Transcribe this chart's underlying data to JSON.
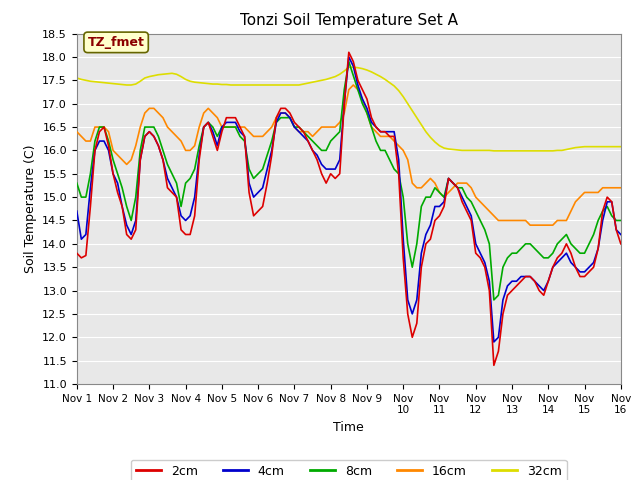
{
  "title": "Tonzi Soil Temperature Set A",
  "xlabel": "Time",
  "ylabel": "Soil Temperature (C)",
  "ylim": [
    11.0,
    18.5
  ],
  "yticks": [
    11.0,
    11.5,
    12.0,
    12.5,
    13.0,
    13.5,
    14.0,
    14.5,
    15.0,
    15.5,
    16.0,
    16.5,
    17.0,
    17.5,
    18.0,
    18.5
  ],
  "x_labels": [
    "Nov 1",
    "Nov 2",
    "Nov 3",
    "Nov 4",
    "Nov 5",
    "Nov 6",
    "Nov 7",
    "Nov 8",
    "Nov 9",
    "Nov 9",
    "Nov 10",
    "Nov 11",
    "Nov 12",
    "Nov 13",
    "Nov 14",
    "Nov 15",
    "Nov 16"
  ],
  "annotation_text": "TZ_fmet",
  "annotation_color": "#8B0000",
  "annotation_bg": "#FFFFCC",
  "bg_color": "#E8E8E8",
  "series": {
    "2cm": {
      "color": "#DD0000",
      "data_x": [
        0.0,
        0.125,
        0.25,
        0.375,
        0.5,
        0.625,
        0.75,
        0.875,
        1.0,
        1.125,
        1.25,
        1.375,
        1.5,
        1.625,
        1.75,
        1.875,
        2.0,
        2.125,
        2.25,
        2.375,
        2.5,
        2.625,
        2.75,
        2.875,
        3.0,
        3.125,
        3.25,
        3.375,
        3.5,
        3.625,
        3.75,
        3.875,
        4.0,
        4.125,
        4.25,
        4.375,
        4.5,
        4.625,
        4.75,
        4.875,
        5.0,
        5.125,
        5.25,
        5.375,
        5.5,
        5.625,
        5.75,
        5.875,
        6.0,
        6.125,
        6.25,
        6.375,
        6.5,
        6.625,
        6.75,
        6.875,
        7.0,
        7.125,
        7.25,
        7.375,
        7.5,
        7.625,
        7.75,
        7.875,
        8.0,
        8.125,
        8.25,
        8.375,
        8.5,
        8.625,
        8.75,
        8.875,
        9.0,
        9.125,
        9.25,
        9.375,
        9.5,
        9.625,
        9.75,
        9.875,
        10.0,
        10.125,
        10.25,
        10.375,
        10.5,
        10.625,
        10.75,
        10.875,
        11.0,
        11.125,
        11.25,
        11.375,
        11.5,
        11.625,
        11.75,
        11.875,
        12.0,
        12.125,
        12.25,
        12.375,
        12.5,
        12.625,
        12.75,
        12.875,
        13.0,
        13.125,
        13.25,
        13.375,
        13.5,
        13.625,
        13.75,
        13.875,
        14.0,
        14.125,
        14.25,
        14.375,
        14.5,
        14.625,
        14.75,
        14.875,
        15.0
      ],
      "data_y": [
        13.8,
        13.7,
        13.75,
        14.8,
        16.0,
        16.4,
        16.5,
        16.1,
        15.5,
        15.1,
        14.8,
        14.2,
        14.1,
        14.3,
        15.8,
        16.3,
        16.4,
        16.3,
        16.1,
        15.8,
        15.2,
        15.1,
        15.0,
        14.3,
        14.2,
        14.2,
        14.6,
        15.8,
        16.5,
        16.6,
        16.3,
        16.0,
        16.4,
        16.7,
        16.7,
        16.7,
        16.5,
        16.3,
        15.1,
        14.6,
        14.7,
        14.8,
        15.3,
        15.9,
        16.7,
        16.9,
        16.9,
        16.8,
        16.6,
        16.5,
        16.4,
        16.2,
        16.0,
        15.8,
        15.5,
        15.3,
        15.5,
        15.4,
        15.5,
        17.0,
        18.1,
        17.9,
        17.5,
        17.3,
        17.1,
        16.7,
        16.5,
        16.4,
        16.4,
        16.3,
        16.3,
        15.5,
        13.7,
        12.5,
        12.0,
        12.3,
        13.5,
        14.0,
        14.1,
        14.5,
        14.6,
        14.8,
        15.4,
        15.3,
        15.2,
        14.9,
        14.7,
        14.5,
        13.8,
        13.7,
        13.5,
        13.0,
        11.4,
        11.7,
        12.5,
        12.9,
        13.0,
        13.1,
        13.2,
        13.3,
        13.3,
        13.2,
        13.0,
        12.9,
        13.2,
        13.5,
        13.7,
        13.8,
        14.0,
        13.8,
        13.5,
        13.3,
        13.3,
        13.4,
        13.5,
        13.9,
        14.7,
        15.0,
        14.9,
        14.3,
        14.0
      ]
    },
    "4cm": {
      "color": "#0000CC",
      "data_x": [
        0.0,
        0.125,
        0.25,
        0.375,
        0.5,
        0.625,
        0.75,
        0.875,
        1.0,
        1.125,
        1.25,
        1.375,
        1.5,
        1.625,
        1.75,
        1.875,
        2.0,
        2.125,
        2.25,
        2.375,
        2.5,
        2.625,
        2.75,
        2.875,
        3.0,
        3.125,
        3.25,
        3.375,
        3.5,
        3.625,
        3.75,
        3.875,
        4.0,
        4.125,
        4.25,
        4.375,
        4.5,
        4.625,
        4.75,
        4.875,
        5.0,
        5.125,
        5.25,
        5.375,
        5.5,
        5.625,
        5.75,
        5.875,
        6.0,
        6.125,
        6.25,
        6.375,
        6.5,
        6.625,
        6.75,
        6.875,
        7.0,
        7.125,
        7.25,
        7.375,
        7.5,
        7.625,
        7.75,
        7.875,
        8.0,
        8.125,
        8.25,
        8.375,
        8.5,
        8.625,
        8.75,
        8.875,
        9.0,
        9.125,
        9.25,
        9.375,
        9.5,
        9.625,
        9.75,
        9.875,
        10.0,
        10.125,
        10.25,
        10.375,
        10.5,
        10.625,
        10.75,
        10.875,
        11.0,
        11.125,
        11.25,
        11.375,
        11.5,
        11.625,
        11.75,
        11.875,
        12.0,
        12.125,
        12.25,
        12.375,
        12.5,
        12.625,
        12.75,
        12.875,
        13.0,
        13.125,
        13.25,
        13.375,
        13.5,
        13.625,
        13.75,
        13.875,
        14.0,
        14.125,
        14.25,
        14.375,
        14.5,
        14.625,
        14.75,
        14.875,
        15.0
      ],
      "data_y": [
        14.7,
        14.1,
        14.2,
        15.2,
        16.0,
        16.2,
        16.2,
        16.0,
        15.5,
        15.3,
        14.8,
        14.4,
        14.2,
        14.5,
        15.8,
        16.3,
        16.4,
        16.3,
        16.1,
        15.8,
        15.4,
        15.2,
        15.0,
        14.6,
        14.5,
        14.6,
        15.0,
        15.9,
        16.5,
        16.6,
        16.4,
        16.1,
        16.5,
        16.6,
        16.6,
        16.6,
        16.4,
        16.3,
        15.3,
        15.0,
        15.1,
        15.2,
        15.6,
        16.0,
        16.6,
        16.8,
        16.8,
        16.7,
        16.5,
        16.4,
        16.3,
        16.2,
        16.0,
        15.9,
        15.7,
        15.6,
        15.6,
        15.6,
        15.8,
        17.0,
        18.0,
        17.8,
        17.4,
        17.1,
        16.9,
        16.6,
        16.5,
        16.4,
        16.4,
        16.4,
        16.4,
        15.8,
        14.1,
        12.8,
        12.5,
        12.8,
        13.8,
        14.2,
        14.4,
        14.8,
        14.8,
        14.9,
        15.4,
        15.3,
        15.2,
        15.0,
        14.8,
        14.6,
        14.0,
        13.8,
        13.6,
        13.2,
        11.9,
        12.0,
        12.8,
        13.1,
        13.2,
        13.2,
        13.3,
        13.3,
        13.3,
        13.2,
        13.1,
        13.0,
        13.2,
        13.5,
        13.6,
        13.7,
        13.8,
        13.6,
        13.5,
        13.4,
        13.4,
        13.5,
        13.6,
        13.9,
        14.5,
        14.9,
        14.9,
        14.3,
        14.2
      ]
    },
    "8cm": {
      "color": "#00AA00",
      "data_x": [
        0.0,
        0.125,
        0.25,
        0.375,
        0.5,
        0.625,
        0.75,
        0.875,
        1.0,
        1.125,
        1.25,
        1.375,
        1.5,
        1.625,
        1.75,
        1.875,
        2.0,
        2.125,
        2.25,
        2.375,
        2.5,
        2.625,
        2.75,
        2.875,
        3.0,
        3.125,
        3.25,
        3.375,
        3.5,
        3.625,
        3.75,
        3.875,
        4.0,
        4.125,
        4.25,
        4.375,
        4.5,
        4.625,
        4.75,
        4.875,
        5.0,
        5.125,
        5.25,
        5.375,
        5.5,
        5.625,
        5.75,
        5.875,
        6.0,
        6.125,
        6.25,
        6.375,
        6.5,
        6.625,
        6.75,
        6.875,
        7.0,
        7.125,
        7.25,
        7.375,
        7.5,
        7.625,
        7.75,
        7.875,
        8.0,
        8.125,
        8.25,
        8.375,
        8.5,
        8.625,
        8.75,
        8.875,
        9.0,
        9.125,
        9.25,
        9.375,
        9.5,
        9.625,
        9.75,
        9.875,
        10.0,
        10.125,
        10.25,
        10.375,
        10.5,
        10.625,
        10.75,
        10.875,
        11.0,
        11.125,
        11.25,
        11.375,
        11.5,
        11.625,
        11.75,
        11.875,
        12.0,
        12.125,
        12.25,
        12.375,
        12.5,
        12.625,
        12.75,
        12.875,
        13.0,
        13.125,
        13.25,
        13.375,
        13.5,
        13.625,
        13.75,
        13.875,
        14.0,
        14.125,
        14.25,
        14.375,
        14.5,
        14.625,
        14.75,
        14.875,
        15.0
      ],
      "data_y": [
        15.3,
        15.0,
        15.0,
        15.5,
        16.2,
        16.5,
        16.5,
        16.2,
        15.8,
        15.5,
        15.2,
        14.8,
        14.5,
        15.0,
        16.0,
        16.5,
        16.5,
        16.5,
        16.3,
        16.0,
        15.7,
        15.5,
        15.3,
        14.8,
        15.3,
        15.4,
        15.6,
        16.1,
        16.5,
        16.6,
        16.5,
        16.3,
        16.5,
        16.5,
        16.5,
        16.5,
        16.3,
        16.2,
        15.6,
        15.4,
        15.5,
        15.6,
        15.9,
        16.2,
        16.6,
        16.7,
        16.7,
        16.7,
        16.5,
        16.5,
        16.4,
        16.3,
        16.2,
        16.1,
        16.0,
        16.0,
        16.2,
        16.3,
        16.4,
        17.3,
        17.9,
        17.6,
        17.3,
        17.0,
        16.8,
        16.5,
        16.2,
        16.0,
        16.0,
        15.8,
        15.6,
        15.5,
        15.0,
        14.0,
        13.5,
        14.0,
        14.8,
        15.0,
        15.0,
        15.2,
        15.1,
        15.0,
        15.4,
        15.3,
        15.2,
        15.2,
        15.0,
        14.9,
        14.7,
        14.5,
        14.3,
        14.0,
        12.8,
        12.9,
        13.5,
        13.7,
        13.8,
        13.8,
        13.9,
        14.0,
        14.0,
        13.9,
        13.8,
        13.7,
        13.7,
        13.8,
        14.0,
        14.1,
        14.2,
        14.0,
        13.9,
        13.8,
        13.8,
        14.0,
        14.2,
        14.5,
        14.7,
        14.8,
        14.6,
        14.5,
        14.5
      ]
    },
    "16cm": {
      "color": "#FF8800",
      "data_x": [
        0.0,
        0.125,
        0.25,
        0.375,
        0.5,
        0.625,
        0.75,
        0.875,
        1.0,
        1.125,
        1.25,
        1.375,
        1.5,
        1.625,
        1.75,
        1.875,
        2.0,
        2.125,
        2.25,
        2.375,
        2.5,
        2.625,
        2.75,
        2.875,
        3.0,
        3.125,
        3.25,
        3.375,
        3.5,
        3.625,
        3.75,
        3.875,
        4.0,
        4.125,
        4.25,
        4.375,
        4.5,
        4.625,
        4.75,
        4.875,
        5.0,
        5.125,
        5.25,
        5.375,
        5.5,
        5.625,
        5.75,
        5.875,
        6.0,
        6.125,
        6.25,
        6.375,
        6.5,
        6.625,
        6.75,
        6.875,
        7.0,
        7.125,
        7.25,
        7.375,
        7.5,
        7.625,
        7.75,
        7.875,
        8.0,
        8.125,
        8.25,
        8.375,
        8.5,
        8.625,
        8.75,
        8.875,
        9.0,
        9.125,
        9.25,
        9.375,
        9.5,
        9.625,
        9.75,
        9.875,
        10.0,
        10.125,
        10.25,
        10.375,
        10.5,
        10.625,
        10.75,
        10.875,
        11.0,
        11.125,
        11.25,
        11.375,
        11.5,
        11.625,
        11.75,
        11.875,
        12.0,
        12.125,
        12.25,
        12.375,
        12.5,
        12.625,
        12.75,
        12.875,
        13.0,
        13.125,
        13.25,
        13.375,
        13.5,
        13.625,
        13.75,
        13.875,
        14.0,
        14.125,
        14.25,
        14.375,
        14.5,
        14.625,
        14.75,
        14.875,
        15.0
      ],
      "data_y": [
        16.4,
        16.3,
        16.2,
        16.2,
        16.5,
        16.5,
        16.5,
        16.4,
        16.0,
        15.9,
        15.8,
        15.7,
        15.8,
        16.1,
        16.5,
        16.8,
        16.9,
        16.9,
        16.8,
        16.7,
        16.5,
        16.4,
        16.3,
        16.2,
        16.0,
        16.0,
        16.1,
        16.5,
        16.8,
        16.9,
        16.8,
        16.7,
        16.5,
        16.5,
        16.5,
        16.5,
        16.5,
        16.5,
        16.4,
        16.3,
        16.3,
        16.3,
        16.4,
        16.5,
        16.7,
        16.8,
        16.8,
        16.7,
        16.5,
        16.4,
        16.4,
        16.4,
        16.3,
        16.4,
        16.5,
        16.5,
        16.5,
        16.5,
        16.6,
        16.8,
        17.3,
        17.4,
        17.3,
        17.1,
        16.8,
        16.5,
        16.4,
        16.3,
        16.3,
        16.3,
        16.2,
        16.1,
        16.0,
        15.8,
        15.3,
        15.2,
        15.2,
        15.3,
        15.4,
        15.3,
        15.1,
        15.0,
        15.1,
        15.2,
        15.3,
        15.3,
        15.3,
        15.2,
        15.0,
        14.9,
        14.8,
        14.7,
        14.6,
        14.5,
        14.5,
        14.5,
        14.5,
        14.5,
        14.5,
        14.5,
        14.4,
        14.4,
        14.4,
        14.4,
        14.4,
        14.4,
        14.5,
        14.5,
        14.5,
        14.7,
        14.9,
        15.0,
        15.1,
        15.1,
        15.1,
        15.1,
        15.2,
        15.2,
        15.2,
        15.2,
        15.2
      ]
    },
    "32cm": {
      "color": "#DDDD00",
      "data_x": [
        0.0,
        0.125,
        0.25,
        0.375,
        0.5,
        0.625,
        0.75,
        0.875,
        1.0,
        1.125,
        1.25,
        1.375,
        1.5,
        1.625,
        1.75,
        1.875,
        2.0,
        2.125,
        2.25,
        2.375,
        2.5,
        2.625,
        2.75,
        2.875,
        3.0,
        3.125,
        3.25,
        3.375,
        3.5,
        3.625,
        3.75,
        3.875,
        4.0,
        4.125,
        4.25,
        4.375,
        4.5,
        4.625,
        4.75,
        4.875,
        5.0,
        5.125,
        5.25,
        5.375,
        5.5,
        5.625,
        5.75,
        5.875,
        6.0,
        6.125,
        6.25,
        6.375,
        6.5,
        6.625,
        6.75,
        6.875,
        7.0,
        7.125,
        7.25,
        7.375,
        7.5,
        7.625,
        7.75,
        7.875,
        8.0,
        8.125,
        8.25,
        8.375,
        8.5,
        8.625,
        8.75,
        8.875,
        9.0,
        9.125,
        9.25,
        9.375,
        9.5,
        9.625,
        9.75,
        9.875,
        10.0,
        10.125,
        10.25,
        10.375,
        10.5,
        10.625,
        10.75,
        10.875,
        11.0,
        11.125,
        11.25,
        11.375,
        11.5,
        11.625,
        11.75,
        11.875,
        12.0,
        12.125,
        12.25,
        12.375,
        12.5,
        12.625,
        12.75,
        12.875,
        13.0,
        13.125,
        13.25,
        13.375,
        13.5,
        13.625,
        13.75,
        13.875,
        14.0,
        14.125,
        14.25,
        14.375,
        14.5,
        14.625,
        14.75,
        14.875,
        15.0
      ],
      "data_y": [
        17.55,
        17.52,
        17.5,
        17.48,
        17.47,
        17.46,
        17.45,
        17.44,
        17.43,
        17.42,
        17.41,
        17.4,
        17.4,
        17.42,
        17.48,
        17.55,
        17.58,
        17.6,
        17.62,
        17.63,
        17.64,
        17.65,
        17.63,
        17.58,
        17.52,
        17.48,
        17.46,
        17.45,
        17.44,
        17.43,
        17.42,
        17.42,
        17.41,
        17.41,
        17.4,
        17.4,
        17.4,
        17.4,
        17.4,
        17.4,
        17.4,
        17.4,
        17.4,
        17.4,
        17.4,
        17.4,
        17.4,
        17.4,
        17.4,
        17.4,
        17.42,
        17.44,
        17.46,
        17.48,
        17.5,
        17.52,
        17.55,
        17.58,
        17.63,
        17.7,
        17.78,
        17.78,
        17.77,
        17.75,
        17.72,
        17.68,
        17.63,
        17.58,
        17.52,
        17.45,
        17.38,
        17.28,
        17.15,
        17.0,
        16.85,
        16.7,
        16.55,
        16.4,
        16.28,
        16.18,
        16.1,
        16.05,
        16.03,
        16.02,
        16.01,
        16.0,
        16.0,
        16.0,
        16.0,
        16.0,
        16.0,
        16.0,
        15.99,
        15.99,
        15.99,
        15.99,
        15.99,
        15.99,
        15.99,
        15.99,
        15.99,
        15.99,
        15.99,
        15.99,
        15.99,
        15.99,
        16.0,
        16.0,
        16.02,
        16.04,
        16.06,
        16.07,
        16.08,
        16.08,
        16.08,
        16.08,
        16.08,
        16.08,
        16.08,
        16.08,
        16.08
      ]
    }
  },
  "legend": [
    {
      "label": "2cm",
      "color": "#DD0000"
    },
    {
      "label": "4cm",
      "color": "#0000CC"
    },
    {
      "label": "8cm",
      "color": "#00AA00"
    },
    {
      "label": "16cm",
      "color": "#FF8800"
    },
    {
      "label": "32cm",
      "color": "#DDDD00"
    }
  ]
}
